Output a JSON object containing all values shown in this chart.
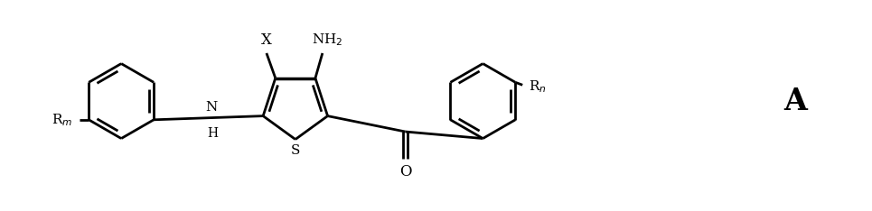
{
  "background_color": "#ffffff",
  "line_color": "#000000",
  "line_width": 2.0,
  "label_A": "A",
  "label_X": "X",
  "label_NH2": "NH$_2$",
  "label_NH": "NH",
  "label_H": "H",
  "label_S": "S",
  "label_O": "O",
  "label_Rm": "R$_m$",
  "label_Rn": "R$_n$",
  "figsize": [
    9.65,
    2.34
  ],
  "dpi": 100
}
